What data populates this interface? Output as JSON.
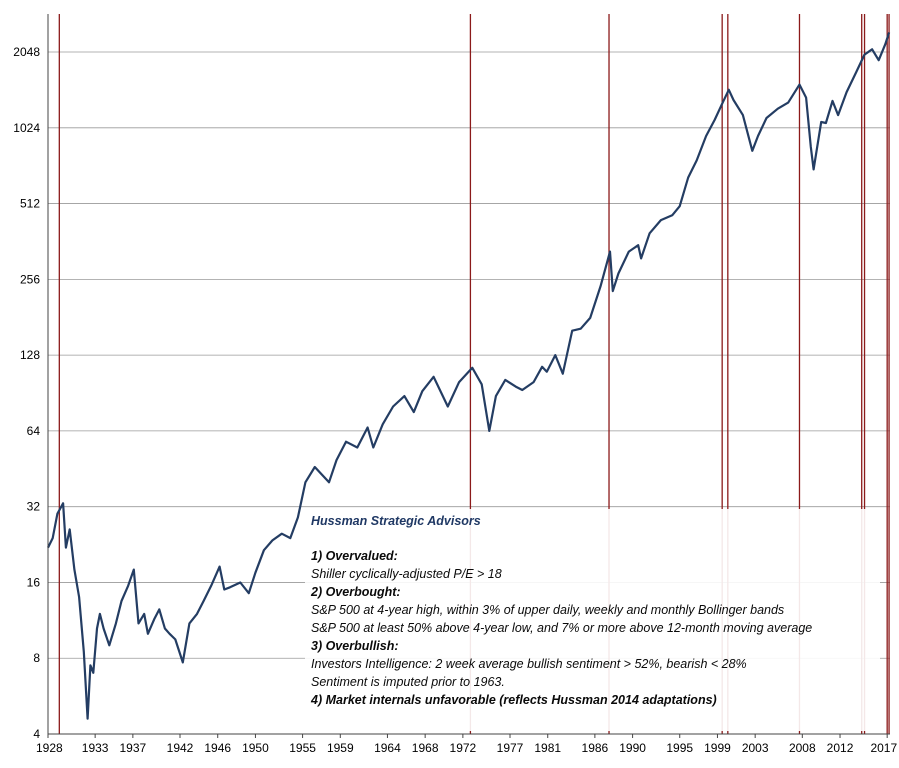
{
  "chart_data": {
    "type": "line",
    "yscale": "log2",
    "ylim": [
      4,
      2900
    ],
    "xlim": [
      1928.0,
      2017.3
    ],
    "y_ticks": [
      4,
      8,
      16,
      32,
      64,
      128,
      256,
      512,
      1024,
      2048
    ],
    "x_ticks": [
      1928,
      1933,
      1937,
      1942,
      1946,
      1950,
      1955,
      1959,
      1964,
      1968,
      1972,
      1977,
      1981,
      1986,
      1990,
      1995,
      1999,
      2003,
      2008,
      2012,
      2017
    ],
    "grid": "horizontal",
    "line_color": "#243d63",
    "marker_color": "#8b1a1a",
    "x": [
      1928.0,
      1928.5,
      1929.0,
      1929.6,
      1929.9,
      1930.3,
      1930.8,
      1931.3,
      1931.8,
      1932.2,
      1932.5,
      1932.8,
      1933.2,
      1933.5,
      1933.9,
      1934.5,
      1935.2,
      1935.8,
      1936.5,
      1937.1,
      1937.6,
      1938.2,
      1938.6,
      1939.3,
      1939.8,
      1940.4,
      1940.9,
      1941.5,
      1942.3,
      1943.0,
      1943.8,
      1944.5,
      1945.3,
      1946.2,
      1946.7,
      1947.3,
      1948.4,
      1949.3,
      1950.0,
      1950.9,
      1951.8,
      1952.8,
      1953.7,
      1954.5,
      1955.3,
      1956.3,
      1957.8,
      1958.6,
      1959.6,
      1960.8,
      1961.9,
      1962.5,
      1963.5,
      1964.6,
      1965.8,
      1966.8,
      1967.7,
      1968.9,
      1970.4,
      1971.6,
      1973.0,
      1974.0,
      1974.8,
      1975.5,
      1976.5,
      1977.6,
      1978.3,
      1979.5,
      1980.4,
      1980.9,
      1981.8,
      1982.6,
      1983.6,
      1984.5,
      1985.5,
      1986.6,
      1987.6,
      1987.9,
      1988.5,
      1989.6,
      1990.6,
      1990.9,
      1991.8,
      1993.0,
      1994.2,
      1995.0,
      1995.9,
      1996.8,
      1997.8,
      1998.7,
      1999.6,
      2000.2,
      2000.7,
      2001.7,
      2002.7,
      2003.3,
      2004.2,
      2005.4,
      2006.5,
      2007.7,
      2008.4,
      2008.9,
      2009.2,
      2010.0,
      2010.5,
      2011.2,
      2011.8,
      2012.7,
      2013.7,
      2014.6,
      2015.4,
      2016.1,
      2016.8,
      2017.2
    ],
    "y": [
      22,
      24,
      30,
      33,
      22,
      26,
      18,
      14,
      8.5,
      4.6,
      7.5,
      7,
      10.5,
      12,
      10.5,
      9,
      11,
      13.5,
      15.5,
      18,
      11,
      12,
      10,
      11.5,
      12.5,
      10.5,
      10,
      9.5,
      7.7,
      11,
      12,
      13.5,
      15.5,
      18.5,
      15,
      15.3,
      16,
      14.5,
      17.5,
      21.5,
      23.5,
      25,
      24,
      29,
      40,
      46,
      40,
      49,
      58,
      55,
      66,
      55,
      68,
      80,
      88,
      76,
      92,
      105,
      80,
      100,
      114,
      98,
      64,
      88,
      102,
      96,
      93,
      100,
      115,
      110,
      128,
      108,
      160,
      163,
      180,
      240,
      330,
      230,
      270,
      330,
      350,
      310,
      390,
      440,
      460,
      500,
      650,
      760,
      950,
      1100,
      1300,
      1450,
      1320,
      1150,
      830,
      950,
      1120,
      1220,
      1290,
      1520,
      1350,
      860,
      700,
      1080,
      1070,
      1310,
      1150,
      1420,
      1700,
      2000,
      2100,
      1900,
      2200,
      2450
    ],
    "event_markers": [
      1929.2,
      1972.8,
      1987.5,
      1999.5,
      2000.1,
      2007.7,
      2014.3,
      2014.6,
      2017.0,
      2017.2
    ]
  },
  "legend": {
    "title": "Hussman Strategic Advisors",
    "h1": "1) Overvalued:",
    "l1": "Shiller cyclically-adjusted P/E > 18",
    "h2": "2) Overbought:",
    "l2a": "S&P 500 at 4-year high, within 3% of upper daily, weekly and monthly Bollinger bands",
    "l2b": "S&P 500 at least 50% above 4-year low, and 7% or more above 12-month moving average",
    "h3": "3) Overbullish:",
    "l3a": "Investors Intelligence: 2 week average bullish sentiment > 52%, bearish  < 28%",
    "l3b": "Sentiment is imputed prior to 1963.",
    "h4": "4) Market internals unfavorable (reflects Hussman 2014  adaptations)"
  }
}
